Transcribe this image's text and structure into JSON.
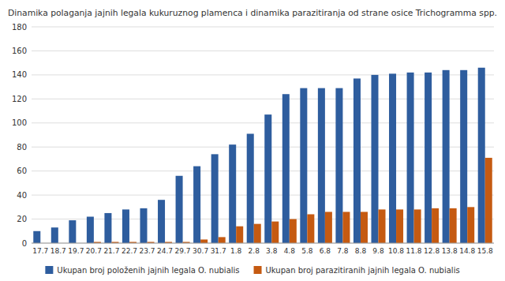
{
  "chart_data": {
    "type": "bar",
    "title": "Dinamika polaganja jajnih legala kukuruznog plamenca i dinamika parazitiranja od strane osice Trichogramma spp.",
    "categories": [
      "17.7",
      "18.7",
      "19.7",
      "20.7",
      "21.7",
      "22.7",
      "23.7",
      "24.7",
      "29.7",
      "30.7",
      "31.7",
      "1.8",
      "2.8",
      "3.8",
      "4.8",
      "5.8",
      "6.8",
      "7.8",
      "8.8",
      "9.8",
      "10.8",
      "11.8",
      "12.8",
      "13.8",
      "14.8",
      "15.8"
    ],
    "series": [
      {
        "name": "Ukupan broj položenih jajnih legala O. nubialis",
        "color": "#2E5D9E",
        "values": [
          10,
          13,
          19,
          22,
          25,
          28,
          29,
          36,
          56,
          64,
          74,
          82,
          91,
          107,
          124,
          129,
          129,
          129,
          137,
          140,
          141,
          142,
          142,
          144,
          144,
          146
        ]
      },
      {
        "name": "Ukupan broj parazitiranih jajnih legala O. nubialis",
        "color": "#C55A11",
        "values": [
          0,
          0,
          0,
          1,
          1,
          1,
          1,
          1,
          1,
          3,
          5,
          14,
          16,
          18,
          20,
          24,
          26,
          26,
          26,
          28,
          28,
          28,
          29,
          29,
          30,
          71
        ]
      }
    ],
    "ylim": [
      0,
      180
    ],
    "yticks": [
      0,
      20,
      40,
      60,
      80,
      100,
      120,
      140,
      160,
      180
    ],
    "grid": true,
    "legend": "bottom"
  }
}
